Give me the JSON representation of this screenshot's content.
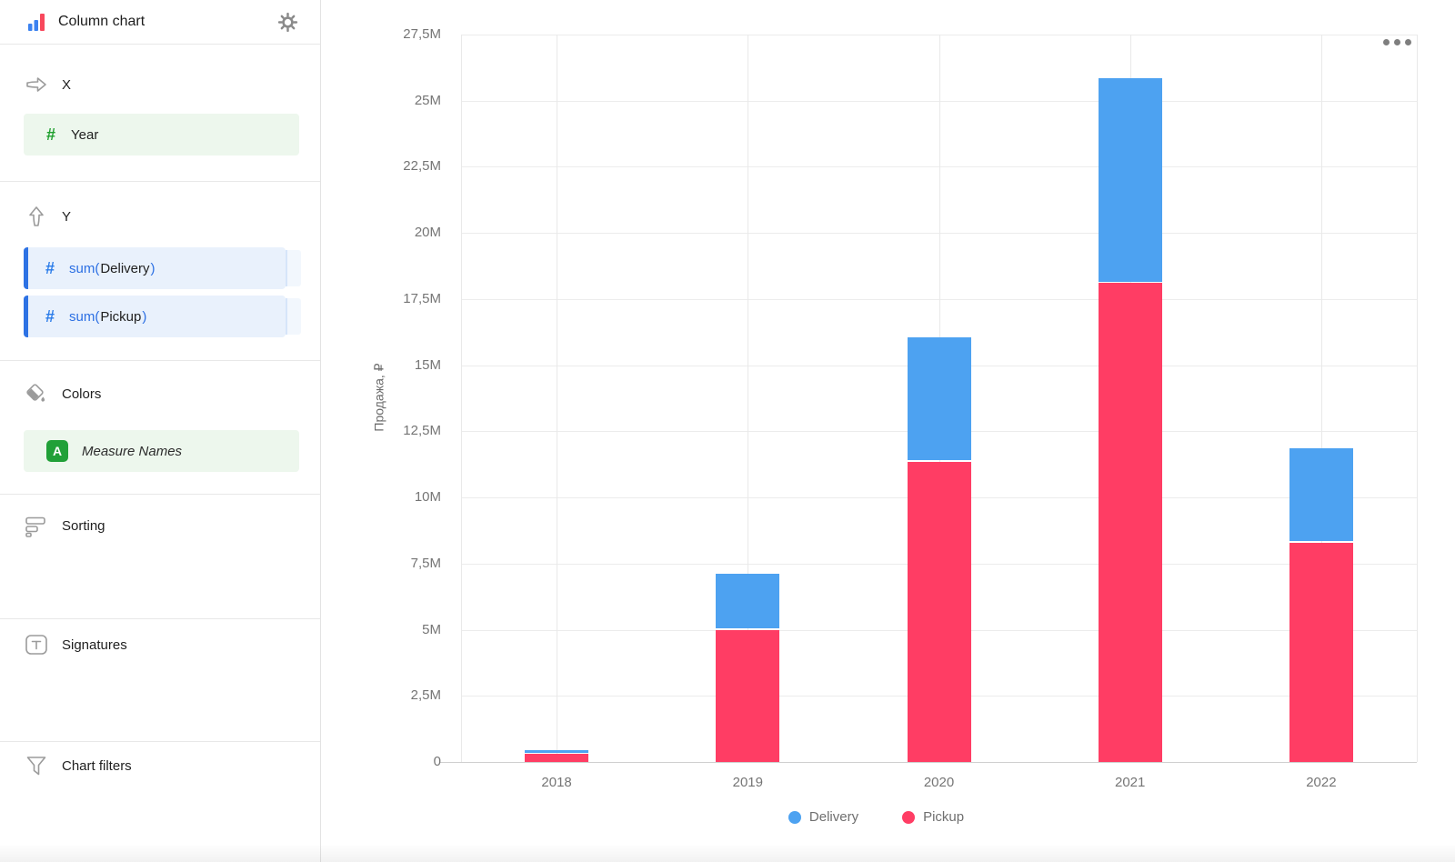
{
  "app": {
    "title": "Column chart"
  },
  "icons": {
    "logo": "column-chart-icon",
    "settings": "gear-icon",
    "x_axis": "arrow-right-icon",
    "y_axis": "arrow-up-icon",
    "colors": "paint-bucket-icon",
    "sorting": "sorting-bars-icon",
    "signatures": "text-box-icon",
    "chart_filters": "funnel-icon",
    "menu": "ellipsis-icon",
    "numeric_field": "hash-icon",
    "text_field": "letter-a-icon"
  },
  "sidebar": {
    "x_section": {
      "label": "X",
      "field": {
        "name": "Year"
      }
    },
    "y_section": {
      "label": "Y",
      "fields": [
        {
          "prefix": "sum(",
          "name": "Delivery",
          "suffix": ")"
        },
        {
          "prefix": "sum(",
          "name": "Pickup",
          "suffix": ")"
        }
      ]
    },
    "colors_section": {
      "label": "Colors",
      "field": {
        "name": "Measure Names"
      }
    },
    "sorting_section": {
      "label": "Sorting"
    },
    "signatures_section": {
      "label": "Signatures"
    },
    "filters_section": {
      "label": "Chart filters"
    }
  },
  "chart_data": {
    "type": "bar",
    "stacked": true,
    "categories": [
      "2018",
      "2019",
      "2020",
      "2021",
      "2022"
    ],
    "series": [
      {
        "name": "Delivery",
        "color": "#4DA2F1",
        "values": [
          150000,
          2100000,
          4700000,
          7750000,
          3550000
        ]
      },
      {
        "name": "Pickup",
        "color": "#FF3D64",
        "values": [
          300000,
          5000000,
          11350000,
          18100000,
          8300000
        ]
      }
    ],
    "ylabel": "Продажа, ₽",
    "xlabel": "",
    "ylim": [
      0,
      27500000
    ],
    "ytick_values": [
      0,
      2500000,
      5000000,
      7500000,
      10000000,
      12500000,
      15000000,
      17500000,
      20000000,
      22500000,
      25000000,
      27500000
    ],
    "ytick_labels": [
      "0",
      "2,5M",
      "5M",
      "7,5M",
      "10M",
      "12,5M",
      "15M",
      "17,5M",
      "20M",
      "22,5M",
      "25M",
      "27,5M"
    ],
    "grid": true,
    "legend_position": "bottom"
  }
}
